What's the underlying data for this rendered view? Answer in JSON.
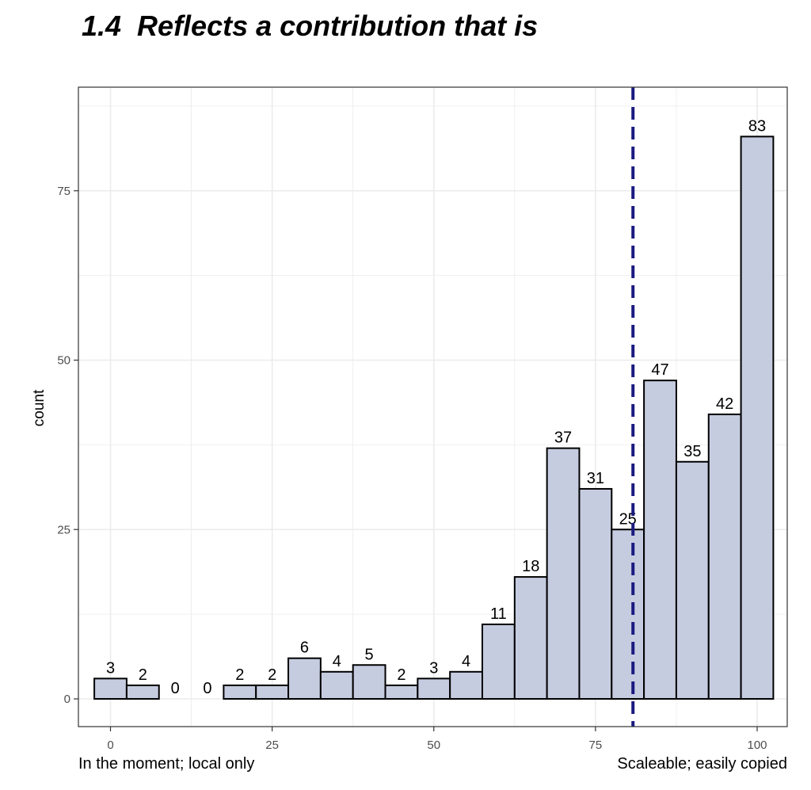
{
  "chart_data": {
    "type": "bar",
    "title": "1.4  Reflects a contribution that is",
    "ylabel": "count",
    "xlabel_left": "In the moment; local only",
    "xlabel_right": "Scaleable; easily copied",
    "x": [
      0,
      5,
      10,
      15,
      20,
      25,
      30,
      35,
      40,
      45,
      50,
      55,
      60,
      65,
      70,
      75,
      80,
      85,
      90,
      95,
      100
    ],
    "values": [
      3,
      2,
      0,
      0,
      2,
      2,
      6,
      4,
      5,
      2,
      3,
      4,
      11,
      18,
      37,
      31,
      25,
      47,
      35,
      42,
      83
    ],
    "bin_width": 5,
    "xlim": [
      -2.5,
      102.5
    ],
    "ylim": [
      0,
      83
    ],
    "xticks": [
      0,
      25,
      50,
      75,
      100
    ],
    "yticks": [
      0,
      25,
      50,
      75
    ],
    "reference_line": {
      "x": 80.8,
      "style": "dashed",
      "color": "#1a1a80"
    },
    "grid": true,
    "colors": {
      "bar_fill": "#c6cce0",
      "bar_stroke": "#000000",
      "grid": "#ebebeb",
      "panel_border": "#333333"
    }
  }
}
